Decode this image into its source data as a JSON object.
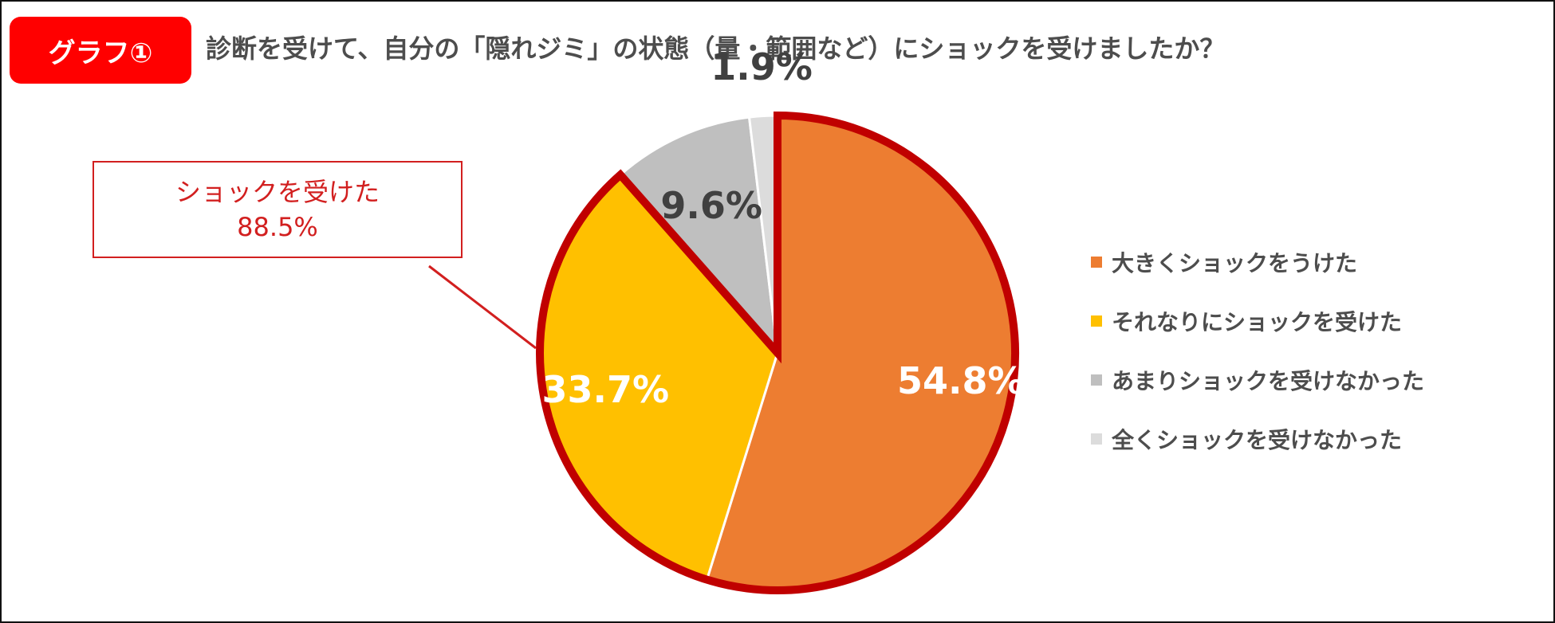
{
  "badge": {
    "label": "グラフ①",
    "color": "#ff0000"
  },
  "question": "診断を受けて、自分の「隠れジミ」の状態（量・範囲など）にショックを受けましたか？",
  "callout": {
    "line1": "ショックを受けた",
    "line2": "88.5%",
    "color": "#d21f1f"
  },
  "chart_data": {
    "type": "pie",
    "categories": [
      "大きくショックをうけた",
      "それなりにショックを受けた",
      "あまりショックを受けなかった",
      "全くショックを受けなかった"
    ],
    "values": [
      54.8,
      33.7,
      9.6,
      1.9
    ],
    "labels": [
      "54.8%",
      "33.7%",
      "9.6%",
      "1.9%"
    ],
    "colors": [
      "#ed7d31",
      "#ffc000",
      "#bfbfbf",
      "#dcdcdc"
    ],
    "highlight_color": "#c00000",
    "legend_position": "right"
  }
}
